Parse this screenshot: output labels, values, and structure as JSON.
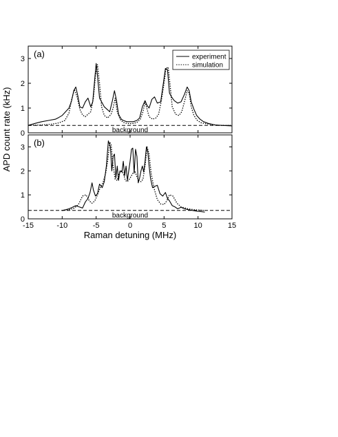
{
  "figure": {
    "xlabel": "Raman detuning (MHz)",
    "ylabel": "APD count rate (kHz)"
  },
  "chart_data": [
    {
      "type": "line",
      "panel_label": "(a)",
      "xlim": [
        -15,
        15
      ],
      "ylim": [
        0,
        3.5
      ],
      "x_ticks": [
        -15,
        -10,
        -5,
        0,
        5,
        10,
        15
      ],
      "y_ticks": [
        0,
        1,
        2,
        3
      ],
      "legend": {
        "position": "top-right",
        "entries": [
          "experiment",
          "simulation"
        ]
      },
      "background_level": 0.3,
      "background_label": "background",
      "series": [
        {
          "name": "experiment",
          "style": "solid",
          "x": [
            -15,
            -14,
            -13,
            -12,
            -11,
            -10.5,
            -10,
            -9.5,
            -9,
            -8.6,
            -8.3,
            -8.0,
            -7.7,
            -7.4,
            -7.0,
            -6.6,
            -6.2,
            -5.8,
            -5.5,
            -5.2,
            -5.0,
            -4.8,
            -4.5,
            -4.2,
            -3.8,
            -3.4,
            -3.0,
            -2.6,
            -2.3,
            -2.0,
            -1.7,
            -1.3,
            -1.0,
            -0.5,
            0,
            0.5,
            1.0,
            1.4,
            1.8,
            2.2,
            2.5,
            2.8,
            3.2,
            3.6,
            4.0,
            4.5,
            4.9,
            5.2,
            5.5,
            5.8,
            6.1,
            6.5,
            7.0,
            7.5,
            8.0,
            8.4,
            8.7,
            9.0,
            9.4,
            9.8,
            10.3,
            10.8,
            11.5,
            12.5,
            13.5,
            15
          ],
          "y": [
            0.3,
            0.38,
            0.45,
            0.5,
            0.55,
            0.62,
            0.7,
            0.85,
            1.0,
            1.3,
            1.7,
            1.85,
            1.5,
            1.05,
            1.0,
            1.25,
            1.4,
            1.05,
            1.25,
            2.2,
            2.8,
            2.3,
            1.4,
            1.25,
            1.05,
            0.95,
            0.85,
            1.3,
            1.7,
            1.3,
            0.75,
            0.55,
            0.5,
            0.45,
            0.45,
            0.45,
            0.5,
            0.6,
            1.05,
            1.3,
            1.1,
            1.0,
            1.35,
            1.45,
            1.2,
            1.25,
            2.0,
            2.6,
            2.55,
            1.6,
            1.45,
            1.3,
            1.2,
            1.25,
            1.55,
            1.85,
            1.7,
            1.25,
            0.95,
            0.7,
            0.55,
            0.45,
            0.38,
            0.32,
            0.3,
            0.28
          ]
        },
        {
          "name": "simulation",
          "style": "dotted",
          "x": [
            -15,
            -13,
            -11.5,
            -10.5,
            -9.6,
            -9,
            -8.6,
            -8.2,
            -7.8,
            -7.4,
            -7.0,
            -6.6,
            -6.2,
            -5.8,
            -5.4,
            -5.1,
            -4.8,
            -4.5,
            -4.2,
            -3.8,
            -3.3,
            -2.8,
            -2.5,
            -2.2,
            -1.9,
            -1.5,
            -1.0,
            -0.5,
            0,
            0.5,
            1.0,
            1.5,
            1.9,
            2.2,
            2.5,
            2.8,
            3.3,
            3.8,
            4.2,
            4.6,
            5.0,
            5.3,
            5.6,
            5.9,
            6.2,
            6.7,
            7.2,
            7.6,
            8.0,
            8.4,
            8.7,
            9.0,
            9.4,
            9.9,
            10.5,
            11.5,
            13,
            15
          ],
          "y": [
            0.3,
            0.32,
            0.35,
            0.4,
            0.5,
            0.8,
            1.35,
            1.75,
            1.45,
            0.95,
            0.72,
            0.65,
            0.75,
            0.85,
            1.4,
            2.3,
            2.75,
            2.0,
            1.05,
            0.7,
            0.6,
            0.75,
            1.0,
            1.4,
            0.85,
            0.55,
            0.42,
            0.38,
            0.37,
            0.38,
            0.42,
            0.55,
            0.85,
            1.25,
            0.95,
            0.65,
            0.55,
            0.6,
            0.75,
            1.3,
            2.0,
            2.6,
            2.65,
            1.9,
            1.05,
            0.75,
            0.7,
            0.85,
            1.25,
            1.7,
            1.6,
            1.05,
            0.7,
            0.5,
            0.4,
            0.35,
            0.3,
            0.3
          ]
        }
      ]
    },
    {
      "type": "line",
      "panel_label": "(b)",
      "xlim": [
        -15,
        15
      ],
      "ylim": [
        0,
        3.5
      ],
      "x_ticks": [
        -15,
        -10,
        -5,
        0,
        5,
        10,
        15
      ],
      "x_tick_labels": [
        "-15",
        "-10",
        "-5",
        "0",
        "5",
        "10",
        "15"
      ],
      "y_ticks": [
        0,
        1,
        2,
        3
      ],
      "background_level": 0.35,
      "background_label": "background",
      "series": [
        {
          "name": "experiment",
          "style": "solid",
          "x": [
            -10,
            -9.5,
            -9,
            -8.5,
            -8.0,
            -7.5,
            -7.0,
            -6.6,
            -6.2,
            -5.9,
            -5.6,
            -5.4,
            -5.1,
            -4.8,
            -4.5,
            -4.1,
            -3.8,
            -3.5,
            -3.2,
            -2.9,
            -2.7,
            -2.5,
            -2.3,
            -2.1,
            -1.9,
            -1.7,
            -1.5,
            -1.2,
            -1.0,
            -0.8,
            -0.6,
            -0.4,
            -0.2,
            0,
            0.2,
            0.4,
            0.6,
            0.8,
            1.0,
            1.2,
            1.4,
            1.6,
            1.8,
            2.0,
            2.2,
            2.4,
            2.6,
            2.8,
            3.0,
            3.3,
            3.6,
            4.0,
            4.4,
            4.8,
            5.2,
            5.5,
            5.8,
            6.2,
            6.6,
            7.0,
            7.5,
            8.0,
            8.6,
            9.2,
            9.8,
            10.4,
            11
          ],
          "y": [
            0.35,
            0.38,
            0.42,
            0.48,
            0.55,
            0.5,
            0.45,
            0.7,
            0.85,
            1.1,
            1.5,
            1.2,
            0.95,
            1.05,
            1.45,
            1.3,
            1.55,
            2.2,
            3.25,
            3.0,
            2.0,
            2.6,
            2.7,
            1.7,
            2.2,
            1.6,
            2.0,
            1.95,
            2.4,
            1.8,
            2.2,
            1.6,
            2.0,
            2.4,
            2.9,
            2.95,
            1.9,
            2.9,
            2.6,
            1.5,
            1.7,
            2.0,
            2.2,
            1.95,
            2.4,
            3.0,
            2.8,
            2.2,
            1.7,
            1.3,
            1.35,
            1.4,
            1.05,
            0.95,
            1.1,
            0.85,
            0.75,
            0.55,
            0.5,
            0.42,
            0.48,
            0.42,
            0.38,
            0.35,
            0.32,
            0.3,
            0.28
          ]
        },
        {
          "name": "simulation",
          "style": "dotted",
          "x": [
            -10,
            -9,
            -8.2,
            -7.6,
            -7.0,
            -6.5,
            -6.0,
            -5.6,
            -5.2,
            -4.8,
            -4.4,
            -4.0,
            -3.6,
            -3.3,
            -3.0,
            -2.8,
            -2.5,
            -2.2,
            -1.9,
            -1.6,
            -1.3,
            -1.0,
            -0.7,
            -0.4,
            0,
            0.4,
            0.7,
            1.0,
            1.3,
            1.6,
            1.9,
            2.2,
            2.5,
            2.8,
            3.1,
            3.5,
            4.0,
            4.5,
            5.0,
            5.4,
            5.8,
            6.3,
            6.9,
            7.5,
            8.5,
            9.5,
            11
          ],
          "y": [
            0.35,
            0.38,
            0.45,
            0.6,
            0.95,
            1.0,
            0.75,
            0.65,
            0.75,
            1.0,
            1.3,
            1.5,
            1.9,
            2.4,
            3.2,
            3.1,
            2.2,
            1.65,
            1.6,
            1.9,
            2.0,
            1.9,
            1.6,
            1.55,
            1.7,
            1.9,
            2.0,
            1.75,
            1.6,
            1.55,
            1.65,
            2.2,
            3.0,
            2.7,
            1.9,
            1.3,
            0.8,
            0.62,
            0.6,
            0.75,
            1.0,
            0.95,
            0.65,
            0.5,
            0.42,
            0.38,
            0.35
          ]
        }
      ]
    }
  ]
}
